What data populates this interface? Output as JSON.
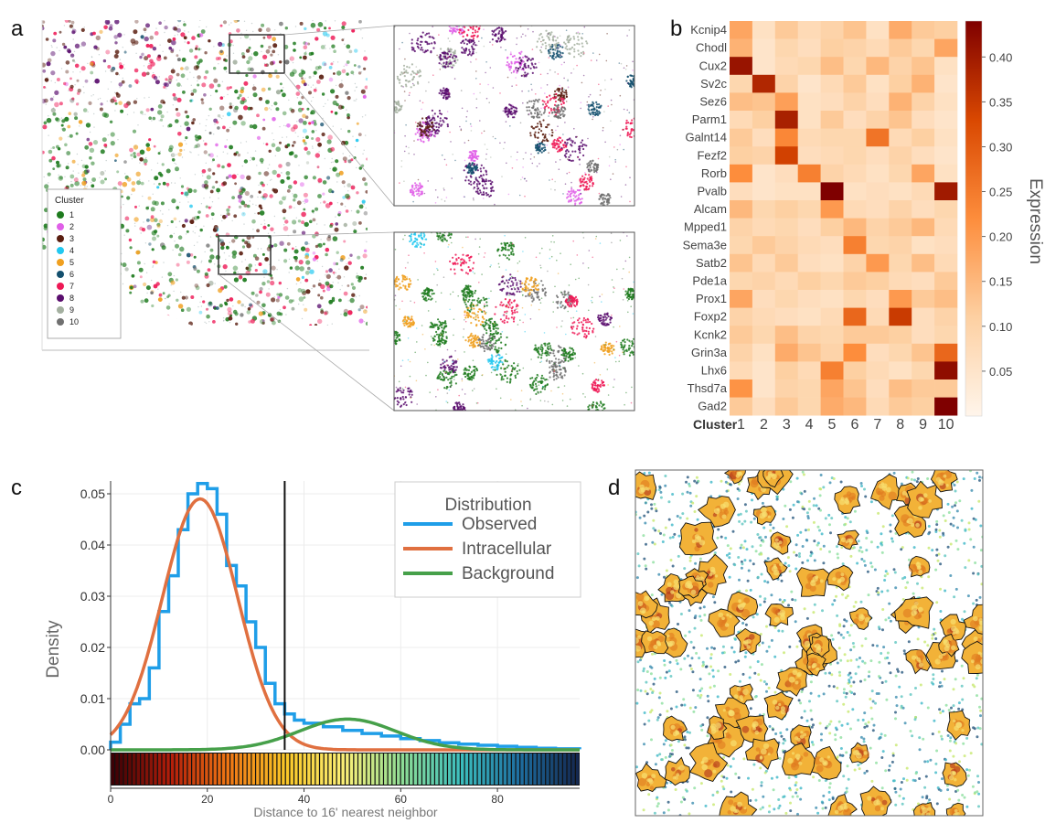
{
  "panels": {
    "a": {
      "letter": "a",
      "legend": {
        "title": "Cluster",
        "items": [
          {
            "label": "1",
            "color": "#1e7b1e"
          },
          {
            "label": "2",
            "color": "#e060e8"
          },
          {
            "label": "3",
            "color": "#5a1e10"
          },
          {
            "label": "4",
            "color": "#22c8f0"
          },
          {
            "label": "5",
            "color": "#f0a020"
          },
          {
            "label": "6",
            "color": "#14506e"
          },
          {
            "label": "7",
            "color": "#ee1855"
          },
          {
            "label": "8",
            "color": "#5a0e6e"
          },
          {
            "label": "9",
            "color": "#a4b0a0"
          },
          {
            "label": "10",
            "color": "#707070"
          }
        ]
      }
    },
    "b": {
      "letter": "b"
    },
    "c": {
      "letter": "c"
    },
    "d": {
      "letter": "d"
    }
  },
  "chart_data": [
    {
      "type": "heatmap",
      "panel": "b",
      "rows": [
        "Kcnip4",
        "Chodl",
        "Cux2",
        "Sv2c",
        "Sez6",
        "Parm1",
        "Galnt14",
        "Fezf2",
        "Rorb",
        "Pvalb",
        "Alcam",
        "Mpped1",
        "Sema3e",
        "Satb2",
        "Pde1a",
        "Prox1",
        "Foxp2",
        "Kcnk2",
        "Grin3a",
        "Lhx6",
        "Thsd7a",
        "Gad2"
      ],
      "columns": [
        "1",
        "2",
        "3",
        "4",
        "5",
        "6",
        "7",
        "8",
        "9",
        "10"
      ],
      "xlabel": "Cluster",
      "colorbar": {
        "label": "Expression",
        "range": [
          0.0,
          0.44
        ],
        "ticks": [
          "0.05",
          "0.10",
          "0.15",
          "0.20",
          "0.25",
          "0.30",
          "0.35",
          "0.40"
        ]
      },
      "values": [
        [
          0.18,
          0.06,
          0.12,
          0.08,
          0.1,
          0.13,
          0.06,
          0.17,
          0.12,
          0.11
        ],
        [
          0.16,
          0.05,
          0.09,
          0.07,
          0.11,
          0.1,
          0.08,
          0.12,
          0.09,
          0.18
        ],
        [
          0.41,
          0.05,
          0.08,
          0.09,
          0.14,
          0.09,
          0.15,
          0.1,
          0.13,
          0.06
        ],
        [
          0.09,
          0.38,
          0.1,
          0.05,
          0.08,
          0.12,
          0.06,
          0.11,
          0.16,
          0.05
        ],
        [
          0.14,
          0.13,
          0.19,
          0.06,
          0.07,
          0.1,
          0.07,
          0.16,
          0.1,
          0.06
        ],
        [
          0.08,
          0.11,
          0.39,
          0.06,
          0.12,
          0.07,
          0.1,
          0.13,
          0.07,
          0.05
        ],
        [
          0.12,
          0.07,
          0.23,
          0.08,
          0.09,
          0.09,
          0.26,
          0.08,
          0.11,
          0.06
        ],
        [
          0.11,
          0.1,
          0.34,
          0.07,
          0.08,
          0.09,
          0.07,
          0.1,
          0.07,
          0.05
        ],
        [
          0.22,
          0.05,
          0.07,
          0.24,
          0.1,
          0.08,
          0.06,
          0.09,
          0.18,
          0.06
        ],
        [
          0.07,
          0.05,
          0.06,
          0.06,
          0.44,
          0.06,
          0.07,
          0.06,
          0.08,
          0.4
        ],
        [
          0.15,
          0.09,
          0.11,
          0.09,
          0.2,
          0.08,
          0.07,
          0.1,
          0.07,
          0.09
        ],
        [
          0.1,
          0.08,
          0.09,
          0.07,
          0.11,
          0.15,
          0.1,
          0.12,
          0.15,
          0.08
        ],
        [
          0.09,
          0.12,
          0.1,
          0.08,
          0.07,
          0.24,
          0.09,
          0.1,
          0.06,
          0.07
        ],
        [
          0.13,
          0.08,
          0.12,
          0.07,
          0.06,
          0.1,
          0.2,
          0.09,
          0.14,
          0.08
        ],
        [
          0.09,
          0.1,
          0.08,
          0.11,
          0.09,
          0.12,
          0.11,
          0.08,
          0.07,
          0.12
        ],
        [
          0.18,
          0.07,
          0.09,
          0.07,
          0.06,
          0.09,
          0.07,
          0.2,
          0.12,
          0.14
        ],
        [
          0.1,
          0.08,
          0.07,
          0.06,
          0.08,
          0.28,
          0.08,
          0.35,
          0.07,
          0.1
        ],
        [
          0.12,
          0.09,
          0.14,
          0.1,
          0.09,
          0.12,
          0.12,
          0.11,
          0.07,
          0.09
        ],
        [
          0.1,
          0.06,
          0.17,
          0.13,
          0.1,
          0.22,
          0.07,
          0.09,
          0.13,
          0.28
        ],
        [
          0.08,
          0.05,
          0.11,
          0.08,
          0.24,
          0.11,
          0.08,
          0.06,
          0.09,
          0.42
        ],
        [
          0.21,
          0.05,
          0.1,
          0.09,
          0.18,
          0.13,
          0.07,
          0.14,
          0.12,
          0.12
        ],
        [
          0.12,
          0.07,
          0.12,
          0.09,
          0.17,
          0.15,
          0.08,
          0.12,
          0.11,
          0.44
        ]
      ]
    },
    {
      "type": "line",
      "panel": "c",
      "xlabel": "Distance to 16' nearest neighbor",
      "ylabel": "Density",
      "xlim": [
        0,
        97
      ],
      "ylim": [
        0,
        0.0525
      ],
      "xticks": [
        "0",
        "20",
        "40",
        "60",
        "80"
      ],
      "yticks": [
        "0.00",
        "0.01",
        "0.02",
        "0.03",
        "0.04",
        "0.05"
      ],
      "threshold_x": 36,
      "legend": {
        "title": "Distribution",
        "position": "top-right"
      },
      "series": [
        {
          "name": "Observed",
          "color": "#1f9ee8",
          "style": "step",
          "x": [
            0,
            2,
            4,
            6,
            8,
            10,
            12,
            14,
            16,
            18,
            20,
            22,
            24,
            26,
            28,
            30,
            32,
            34,
            36,
            38,
            40,
            44,
            48,
            52,
            56,
            60,
            64,
            68,
            72,
            76,
            80,
            84,
            88,
            92,
            97
          ],
          "y": [
            0.0015,
            0.005,
            0.009,
            0.01,
            0.016,
            0.027,
            0.034,
            0.043,
            0.05,
            0.052,
            0.051,
            0.046,
            0.036,
            0.032,
            0.025,
            0.02,
            0.013,
            0.009,
            0.007,
            0.0058,
            0.0052,
            0.0045,
            0.0038,
            0.0032,
            0.0027,
            0.0022,
            0.0018,
            0.0014,
            0.0011,
            0.0009,
            0.0007,
            0.0005,
            0.0003,
            0.0002,
            0.0001
          ]
        },
        {
          "name": "Intracellular",
          "color": "#e07040",
          "style": "gaussian",
          "mean": 18.5,
          "sd": 7.8,
          "peak": 0.049
        },
        {
          "name": "Background",
          "color": "#46a04a",
          "style": "gaussian",
          "mean": 49,
          "sd": 10,
          "peak": 0.006
        }
      ]
    }
  ]
}
